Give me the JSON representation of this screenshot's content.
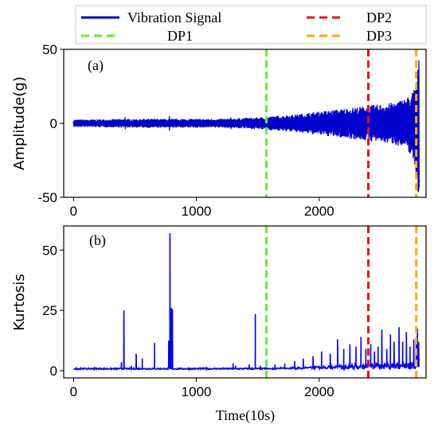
{
  "legend": {
    "entries": [
      {
        "label": "Vibration Signal",
        "color": "#0000cc",
        "style": "solid"
      },
      {
        "label": "DP1",
        "color": "#66ee33",
        "style": "dashed"
      },
      {
        "label": "DP2",
        "color": "#ee1111",
        "style": "dashed"
      },
      {
        "label": "DP3",
        "color": "#ffaa00",
        "style": "dashed"
      }
    ]
  },
  "chart_data": [
    {
      "panel": "(a)",
      "type": "line",
      "xlabel": "",
      "ylabel": "Amplitude(g)",
      "xlim": [
        -80,
        2870
      ],
      "ylim": [
        -50,
        50
      ],
      "x_ticks": [
        0,
        1000,
        2000
      ],
      "y_ticks": [
        -50,
        0,
        50
      ],
      "markers": [
        {
          "name": "DP1",
          "x": 1570,
          "color": "#66ee33"
        },
        {
          "name": "DP2",
          "x": 2400,
          "color": "#ee1111"
        },
        {
          "name": "DP3",
          "x": 2790,
          "color": "#ffaa00"
        }
      ],
      "series": [
        {
          "name": "Vibration Signal",
          "color": "#0000cc",
          "envelope": {
            "x": [
              0,
              300,
              600,
              900,
              1200,
              1500,
              1800,
              2000,
              2200,
              2400,
              2500,
              2600,
              2700,
              2750,
              2780,
              2800,
              2810,
              2815
            ],
            "upper": [
              2.5,
              2.8,
              3,
              3,
              3,
              4,
              6,
              8,
              10,
              12,
              13,
              14,
              17,
              20,
              25,
              35,
              45,
              40
            ],
            "lower": [
              -2.5,
              -2.8,
              -3,
              -3,
              -3,
              -4,
              -6,
              -8,
              -10,
              -12,
              -13,
              -14,
              -17,
              -22,
              -30,
              -45,
              -50,
              -45
            ]
          },
          "spikes": [
            {
              "x": 420,
              "y": 4
            },
            {
              "x": 780,
              "y": 5
            },
            {
              "x": 1280,
              "y": 4
            }
          ]
        }
      ]
    },
    {
      "panel": "(b)",
      "type": "line",
      "xlabel": "Time(10s)",
      "ylabel": "Kurtosis",
      "xlim": [
        -80,
        2870
      ],
      "ylim": [
        -3,
        60
      ],
      "x_ticks": [
        0,
        1000,
        2000
      ],
      "y_ticks": [
        0,
        25,
        50
      ],
      "markers": [
        {
          "name": "DP1",
          "x": 1570,
          "color": "#66ee33"
        },
        {
          "name": "DP2",
          "x": 2400,
          "color": "#ee1111"
        },
        {
          "name": "DP3",
          "x": 2790,
          "color": "#ffaa00"
        }
      ],
      "series": [
        {
          "name": "Kurtosis",
          "color": "#0000ff",
          "baseline": 0.5,
          "spikes": [
            {
              "x": 60,
              "y": 1.5
            },
            {
              "x": 170,
              "y": 1.5
            },
            {
              "x": 390,
              "y": 3.5
            },
            {
              "x": 410,
              "y": 25
            },
            {
              "x": 470,
              "y": 2
            },
            {
              "x": 510,
              "y": 7
            },
            {
              "x": 560,
              "y": 5
            },
            {
              "x": 660,
              "y": 11.5
            },
            {
              "x": 775,
              "y": 12.5
            },
            {
              "x": 785,
              "y": 57
            },
            {
              "x": 795,
              "y": 26
            },
            {
              "x": 805,
              "y": 25.5
            },
            {
              "x": 1080,
              "y": 1.5
            },
            {
              "x": 1300,
              "y": 3
            },
            {
              "x": 1320,
              "y": 2
            },
            {
              "x": 1430,
              "y": 2.5
            },
            {
              "x": 1480,
              "y": 23.5
            },
            {
              "x": 1520,
              "y": 2
            },
            {
              "x": 1560,
              "y": 1.5
            },
            {
              "x": 1640,
              "y": 2.5
            },
            {
              "x": 1720,
              "y": 3
            },
            {
              "x": 1800,
              "y": 4
            },
            {
              "x": 1870,
              "y": 5
            },
            {
              "x": 1950,
              "y": 6
            },
            {
              "x": 2020,
              "y": 8
            },
            {
              "x": 2090,
              "y": 7
            },
            {
              "x": 2150,
              "y": 13
            },
            {
              "x": 2200,
              "y": 9
            },
            {
              "x": 2250,
              "y": 11
            },
            {
              "x": 2300,
              "y": 10
            },
            {
              "x": 2340,
              "y": 14
            },
            {
              "x": 2380,
              "y": 9
            },
            {
              "x": 2420,
              "y": 11
            },
            {
              "x": 2450,
              "y": 8
            },
            {
              "x": 2480,
              "y": 10
            },
            {
              "x": 2510,
              "y": 17
            },
            {
              "x": 2550,
              "y": 9
            },
            {
              "x": 2580,
              "y": 15
            },
            {
              "x": 2610,
              "y": 12
            },
            {
              "x": 2650,
              "y": 18
            },
            {
              "x": 2680,
              "y": 12
            },
            {
              "x": 2710,
              "y": 16
            },
            {
              "x": 2740,
              "y": 10
            },
            {
              "x": 2770,
              "y": 13
            },
            {
              "x": 2790,
              "y": 14
            },
            {
              "x": 2800,
              "y": 17.5
            },
            {
              "x": 2810,
              "y": 12
            }
          ]
        }
      ]
    }
  ]
}
